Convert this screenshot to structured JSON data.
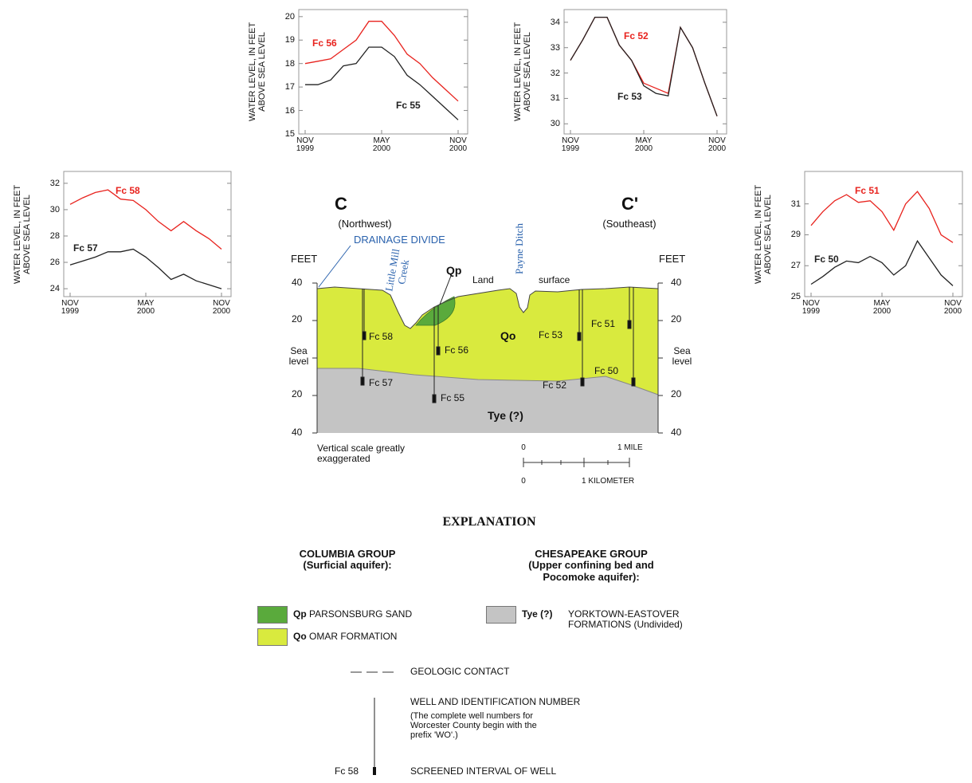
{
  "chart_data": [
    {
      "type": "line",
      "ylabel": "WATER LEVEL, IN FEET\nABOVE SEA LEVEL",
      "x": [
        "1999-11",
        "1999-12",
        "2000-01",
        "2000-02",
        "2000-03",
        "2000-04",
        "2000-05",
        "2000-06",
        "2000-07",
        "2000-08",
        "2000-09",
        "2000-10",
        "2000-11"
      ],
      "xlim": [
        "1999-11",
        "2000-11"
      ],
      "xticks": [
        {
          "value": "1999-11",
          "label": "NOV\n1999"
        },
        {
          "value": "2000-05",
          "label": "MAY\n2000"
        },
        {
          "value": "2000-11",
          "label": "NOV\n2000"
        }
      ],
      "ylim": [
        15,
        20.3
      ],
      "yticks": [
        15,
        16,
        17,
        18,
        19,
        20
      ],
      "grid": false,
      "series": [
        {
          "name": "Fc 56",
          "color": "#e8231e",
          "values": [
            18.0,
            18.1,
            18.2,
            18.6,
            19.0,
            19.8,
            19.8,
            19.2,
            18.4,
            18.0,
            17.4,
            16.9,
            16.4
          ]
        },
        {
          "name": "Fc 55",
          "color": "#222222",
          "values": [
            17.1,
            17.1,
            17.3,
            17.9,
            18.0,
            18.7,
            18.7,
            18.3,
            17.5,
            17.1,
            16.6,
            16.1,
            15.6
          ]
        }
      ]
    },
    {
      "type": "line",
      "ylabel": "WATER LEVEL, IN FEET\nABOVE SEA LEVEL",
      "x": [
        "1999-11",
        "1999-12",
        "2000-01",
        "2000-02",
        "2000-03",
        "2000-04",
        "2000-05",
        "2000-06",
        "2000-07",
        "2000-08",
        "2000-09",
        "2000-10",
        "2000-11"
      ],
      "xlim": [
        "1999-11",
        "2000-11"
      ],
      "xticks": [
        {
          "value": "1999-11",
          "label": "NOV\n1999"
        },
        {
          "value": "2000-05",
          "label": "MAY\n2000"
        },
        {
          "value": "2000-11",
          "label": "NOV\n2000"
        }
      ],
      "ylim": [
        29.6,
        34.5
      ],
      "yticks": [
        30,
        31,
        32,
        33,
        34
      ],
      "grid": false,
      "series": [
        {
          "name": "Fc 52",
          "color": "#e8231e",
          "values": [
            32.5,
            33.3,
            34.2,
            34.2,
            33.1,
            32.5,
            31.6,
            31.4,
            31.2,
            33.8,
            33.0,
            31.6,
            30.3
          ]
        },
        {
          "name": "Fc 53",
          "color": "#222222",
          "values": [
            32.5,
            33.3,
            34.2,
            34.2,
            33.1,
            32.5,
            31.5,
            31.2,
            31.1,
            33.8,
            33.0,
            31.6,
            30.3
          ]
        }
      ]
    },
    {
      "type": "line",
      "ylabel": "WATER LEVEL, IN FEET\nABOVE SEA LEVEL",
      "x": [
        "1999-11",
        "1999-12",
        "2000-01",
        "2000-02",
        "2000-03",
        "2000-04",
        "2000-05",
        "2000-06",
        "2000-07",
        "2000-08",
        "2000-09",
        "2000-10",
        "2000-11"
      ],
      "xlim": [
        "1999-11",
        "2000-11"
      ],
      "xticks": [
        {
          "value": "1999-11",
          "label": "NOV\n1999"
        },
        {
          "value": "2000-05",
          "label": "MAY\n2000"
        },
        {
          "value": "2000-11",
          "label": "NOV\n2000"
        }
      ],
      "ylim": [
        23.4,
        32.9
      ],
      "yticks": [
        24,
        26,
        28,
        30,
        32
      ],
      "grid": false,
      "series": [
        {
          "name": "Fc 58",
          "color": "#e8231e",
          "values": [
            30.4,
            30.9,
            31.3,
            31.5,
            30.8,
            30.7,
            30.0,
            29.1,
            28.4,
            29.1,
            28.4,
            27.8,
            27.0
          ]
        },
        {
          "name": "Fc 57",
          "color": "#222222",
          "values": [
            25.8,
            26.1,
            26.4,
            26.8,
            26.8,
            27.0,
            26.4,
            25.6,
            24.7,
            25.1,
            24.6,
            24.3,
            24.0
          ]
        }
      ]
    },
    {
      "type": "line",
      "ylabel": "WATER LEVEL, IN FEET\nABOVE SEA LEVEL",
      "x": [
        "1999-11",
        "1999-12",
        "2000-01",
        "2000-02",
        "2000-03",
        "2000-04",
        "2000-05",
        "2000-06",
        "2000-07",
        "2000-08",
        "2000-09",
        "2000-10",
        "2000-11"
      ],
      "xlim": [
        "1999-11",
        "2000-11"
      ],
      "xticks": [
        {
          "value": "1999-11",
          "label": "NOV\n1999"
        },
        {
          "value": "2000-05",
          "label": "MAY\n2000"
        },
        {
          "value": "2000-11",
          "label": "NOV\n2000"
        }
      ],
      "ylim": [
        25,
        33.1
      ],
      "yticks": [
        25,
        27,
        29,
        31
      ],
      "grid": false,
      "series": [
        {
          "name": "Fc 51",
          "color": "#e8231e",
          "values": [
            29.6,
            30.5,
            31.2,
            31.6,
            31.1,
            31.2,
            30.5,
            29.3,
            31.0,
            31.8,
            30.7,
            29.0,
            28.5
          ]
        },
        {
          "name": "Fc 50",
          "color": "#222222",
          "values": [
            25.8,
            26.3,
            26.9,
            27.3,
            27.2,
            27.6,
            27.2,
            26.4,
            27.0,
            28.6,
            27.5,
            26.4,
            25.7
          ]
        }
      ]
    }
  ],
  "cross_section": {
    "left_end": "C",
    "left_direction": "(Northwest)",
    "right_end": "C'",
    "right_direction": "(Southeast)",
    "drainage_divide": "DRAINAGE DIVIDE",
    "streams": [
      "Little Mill\nCreek",
      "Payne Ditch"
    ],
    "land_surface": [
      "Land",
      "surface"
    ],
    "units": [
      "Qp",
      "Qo",
      "Tye (?)"
    ],
    "elevation_unit": "FEET",
    "elevation_labels": [
      "40",
      "20",
      "Sea\nlevel",
      "20",
      "40"
    ],
    "wells": [
      "Fc 58",
      "Fc 57",
      "Fc 56",
      "Fc 55",
      "Fc 53",
      "Fc 52",
      "Fc 51",
      "Fc 50"
    ],
    "note": "Vertical scale greatly\nexaggerated",
    "scale": {
      "mile_labels": [
        "0",
        "1 MILE"
      ],
      "kilometer_labels": [
        "0",
        "1 KILOMETER"
      ]
    }
  },
  "explanation": {
    "title": "EXPLANATION",
    "groups": [
      {
        "heading": "COLUMBIA GROUP\n(Surficial aquifer):",
        "units": [
          {
            "symbol": "Qp",
            "name": "PARSONSBURG SAND"
          },
          {
            "symbol": "Qo",
            "name": "OMAR FORMATION"
          }
        ]
      },
      {
        "heading": "CHESAPEAKE GROUP\n(Upper confining bed and\nPocomoke aquifer):",
        "units": [
          {
            "symbol": "Tye (?)",
            "name": "YORKTOWN-EASTOVER\nFORMATIONS (Undivided)"
          }
        ]
      }
    ],
    "symbols": [
      {
        "label": "GEOLOGIC CONTACT"
      },
      {
        "label": "WELL AND IDENTIFICATION NUMBER",
        "note": "(The complete well numbers for\nWorcester County begin with the\nprefix 'WO'.)"
      },
      {
        "example": "Fc 58",
        "label": "SCREENED INTERVAL OF WELL"
      }
    ]
  }
}
